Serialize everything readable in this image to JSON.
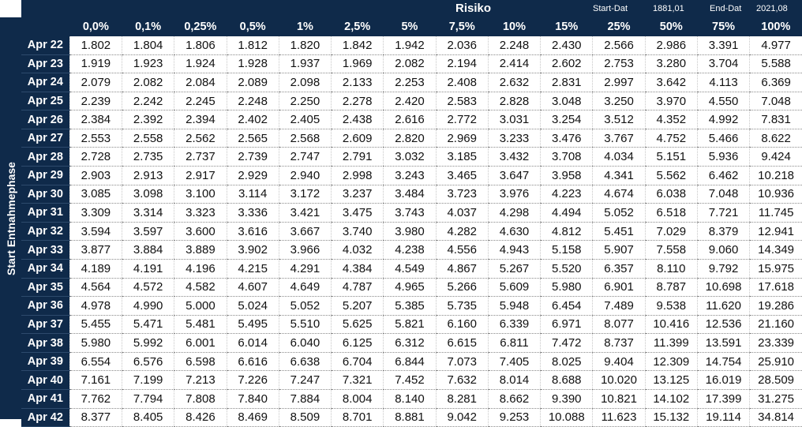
{
  "header": {
    "risk_label": "Risiko",
    "start_label": "Start-Dat",
    "start_value": "1881,01",
    "end_label": "End-Dat",
    "end_value": "2021,08"
  },
  "side_label": "Start Entnahmephase",
  "columns": [
    "0,0%",
    "0,1%",
    "0,25%",
    "0,5%",
    "1%",
    "2,5%",
    "5%",
    "7,5%",
    "10%",
    "15%",
    "25%",
    "50%",
    "75%",
    "100%"
  ],
  "rows": [
    {
      "label": "Apr 22",
      "values": [
        "1.802",
        "1.804",
        "1.806",
        "1.812",
        "1.820",
        "1.842",
        "1.942",
        "2.036",
        "2.248",
        "2.430",
        "2.566",
        "2.986",
        "3.391",
        "4.977"
      ]
    },
    {
      "label": "Apr 23",
      "values": [
        "1.919",
        "1.923",
        "1.924",
        "1.928",
        "1.937",
        "1.969",
        "2.082",
        "2.194",
        "2.414",
        "2.602",
        "2.753",
        "3.280",
        "3.704",
        "5.588"
      ]
    },
    {
      "label": "Apr 24",
      "values": [
        "2.079",
        "2.082",
        "2.084",
        "2.089",
        "2.098",
        "2.133",
        "2.253",
        "2.408",
        "2.632",
        "2.831",
        "2.997",
        "3.642",
        "4.113",
        "6.369"
      ]
    },
    {
      "label": "Apr 25",
      "values": [
        "2.239",
        "2.242",
        "2.245",
        "2.248",
        "2.250",
        "2.278",
        "2.420",
        "2.583",
        "2.828",
        "3.048",
        "3.250",
        "3.970",
        "4.550",
        "7.048"
      ]
    },
    {
      "label": "Apr 26",
      "values": [
        "2.384",
        "2.392",
        "2.394",
        "2.402",
        "2.405",
        "2.438",
        "2.616",
        "2.772",
        "3.031",
        "3.254",
        "3.512",
        "4.352",
        "4.992",
        "7.831"
      ]
    },
    {
      "label": "Apr 27",
      "values": [
        "2.553",
        "2.558",
        "2.562",
        "2.565",
        "2.568",
        "2.609",
        "2.820",
        "2.969",
        "3.233",
        "3.476",
        "3.767",
        "4.752",
        "5.466",
        "8.622"
      ]
    },
    {
      "label": "Apr 28",
      "values": [
        "2.728",
        "2.735",
        "2.737",
        "2.739",
        "2.747",
        "2.791",
        "3.032",
        "3.185",
        "3.432",
        "3.708",
        "4.034",
        "5.151",
        "5.936",
        "9.424"
      ]
    },
    {
      "label": "Apr 29",
      "values": [
        "2.903",
        "2.913",
        "2.917",
        "2.929",
        "2.940",
        "2.998",
        "3.243",
        "3.465",
        "3.647",
        "3.958",
        "4.341",
        "5.562",
        "6.462",
        "10.218"
      ]
    },
    {
      "label": "Apr 30",
      "values": [
        "3.085",
        "3.098",
        "3.100",
        "3.114",
        "3.172",
        "3.237",
        "3.484",
        "3.723",
        "3.976",
        "4.223",
        "4.674",
        "6.038",
        "7.048",
        "10.936"
      ]
    },
    {
      "label": "Apr 31",
      "values": [
        "3.309",
        "3.314",
        "3.323",
        "3.336",
        "3.421",
        "3.475",
        "3.743",
        "4.037",
        "4.298",
        "4.494",
        "5.052",
        "6.518",
        "7.721",
        "11.745"
      ]
    },
    {
      "label": "Apr 32",
      "values": [
        "3.594",
        "3.597",
        "3.600",
        "3.616",
        "3.667",
        "3.740",
        "3.980",
        "4.282",
        "4.630",
        "4.812",
        "5.451",
        "7.029",
        "8.379",
        "12.941"
      ]
    },
    {
      "label": "Apr 33",
      "values": [
        "3.877",
        "3.884",
        "3.889",
        "3.902",
        "3.966",
        "4.032",
        "4.238",
        "4.556",
        "4.943",
        "5.158",
        "5.907",
        "7.558",
        "9.060",
        "14.349"
      ]
    },
    {
      "label": "Apr 34",
      "values": [
        "4.189",
        "4.191",
        "4.196",
        "4.215",
        "4.291",
        "4.384",
        "4.549",
        "4.867",
        "5.267",
        "5.520",
        "6.357",
        "8.110",
        "9.792",
        "15.975"
      ]
    },
    {
      "label": "Apr 35",
      "values": [
        "4.564",
        "4.572",
        "4.582",
        "4.607",
        "4.649",
        "4.787",
        "4.965",
        "5.266",
        "5.609",
        "5.980",
        "6.901",
        "8.787",
        "10.698",
        "17.618"
      ]
    },
    {
      "label": "Apr 36",
      "values": [
        "4.978",
        "4.990",
        "5.000",
        "5.024",
        "5.052",
        "5.207",
        "5.385",
        "5.735",
        "5.948",
        "6.454",
        "7.489",
        "9.538",
        "11.620",
        "19.286"
      ]
    },
    {
      "label": "Apr 37",
      "values": [
        "5.455",
        "5.471",
        "5.481",
        "5.495",
        "5.510",
        "5.625",
        "5.821",
        "6.160",
        "6.339",
        "6.971",
        "8.077",
        "10.416",
        "12.536",
        "21.160"
      ]
    },
    {
      "label": "Apr 38",
      "values": [
        "5.980",
        "5.992",
        "6.001",
        "6.014",
        "6.040",
        "6.125",
        "6.312",
        "6.615",
        "6.811",
        "7.472",
        "8.737",
        "11.399",
        "13.591",
        "23.339"
      ]
    },
    {
      "label": "Apr 39",
      "values": [
        "6.554",
        "6.576",
        "6.598",
        "6.616",
        "6.638",
        "6.704",
        "6.844",
        "7.073",
        "7.405",
        "8.025",
        "9.404",
        "12.309",
        "14.754",
        "25.910"
      ]
    },
    {
      "label": "Apr 40",
      "values": [
        "7.161",
        "7.199",
        "7.213",
        "7.226",
        "7.247",
        "7.321",
        "7.452",
        "7.632",
        "8.014",
        "8.688",
        "10.020",
        "13.125",
        "16.019",
        "28.509"
      ]
    },
    {
      "label": "Apr 41",
      "values": [
        "7.762",
        "7.794",
        "7.808",
        "7.840",
        "7.884",
        "8.004",
        "8.140",
        "8.281",
        "8.662",
        "9.390",
        "10.821",
        "14.102",
        "17.399",
        "31.275"
      ]
    },
    {
      "label": "Apr 42",
      "values": [
        "8.377",
        "8.405",
        "8.426",
        "8.469",
        "8.509",
        "8.701",
        "8.881",
        "9.042",
        "9.253",
        "10.088",
        "11.623",
        "15.132",
        "19.114",
        "34.814"
      ]
    }
  ]
}
